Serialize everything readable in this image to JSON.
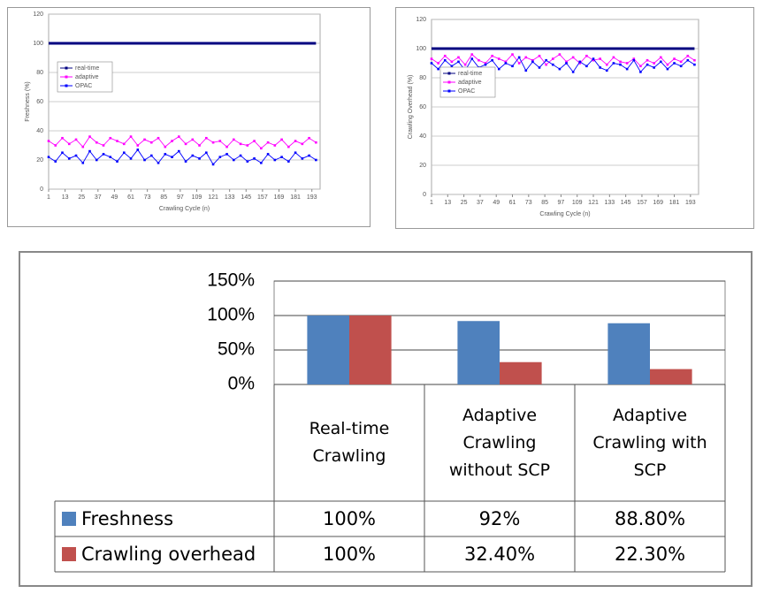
{
  "chart_data": [
    {
      "type": "line",
      "ylabel": "Freshness (%)",
      "xlabel": "Crawling Cycle (n)",
      "x": [
        1,
        6,
        11,
        16,
        21,
        26,
        31,
        36,
        41,
        46,
        51,
        56,
        61,
        66,
        71,
        76,
        81,
        86,
        91,
        96,
        101,
        106,
        111,
        116,
        121,
        126,
        131,
        136,
        141,
        146,
        151,
        156,
        161,
        166,
        171,
        176,
        181,
        186,
        191,
        196
      ],
      "xlim": [
        1,
        199
      ],
      "xticks": [
        1,
        13,
        25,
        37,
        49,
        61,
        73,
        85,
        97,
        109,
        121,
        133,
        145,
        157,
        169,
        181,
        193
      ],
      "ylim": [
        0,
        120
      ],
      "yticks": [
        0,
        20,
        40,
        60,
        80,
        100,
        120
      ],
      "grid": true,
      "legend": "center left",
      "series": [
        {
          "name": "real-time",
          "color": "#000080",
          "values": [
            100,
            100,
            100,
            100,
            100,
            100,
            100,
            100,
            100,
            100,
            100,
            100,
            100,
            100,
            100,
            100,
            100,
            100,
            100,
            100,
            100,
            100,
            100,
            100,
            100,
            100,
            100,
            100,
            100,
            100,
            100,
            100,
            100,
            100,
            100,
            100,
            100,
            100,
            100,
            100
          ]
        },
        {
          "name": "adaptive",
          "color": "#ff00ff",
          "values": [
            33,
            30,
            35,
            31,
            34,
            29,
            36,
            32,
            30,
            35,
            33,
            31,
            36,
            30,
            34,
            32,
            35,
            29,
            33,
            36,
            31,
            34,
            30,
            35,
            32,
            33,
            29,
            34,
            31,
            30,
            33,
            28,
            32,
            30,
            34,
            29,
            33,
            31,
            35,
            32
          ]
        },
        {
          "name": "OPAC",
          "color": "#0000ff",
          "values": [
            22,
            19,
            25,
            21,
            23,
            18,
            26,
            20,
            24,
            22,
            19,
            25,
            21,
            27,
            20,
            23,
            18,
            24,
            22,
            26,
            19,
            23,
            21,
            25,
            17,
            22,
            24,
            20,
            23,
            19,
            21,
            18,
            24,
            20,
            22,
            19,
            25,
            21,
            23,
            20
          ]
        }
      ]
    },
    {
      "type": "line",
      "ylabel": "Crawling Overhead (%)",
      "xlabel": "Crawling Cycle (n)",
      "x": [
        1,
        6,
        11,
        16,
        21,
        26,
        31,
        36,
        41,
        46,
        51,
        56,
        61,
        66,
        71,
        76,
        81,
        86,
        91,
        96,
        101,
        106,
        111,
        116,
        121,
        126,
        131,
        136,
        141,
        146,
        151,
        156,
        161,
        166,
        171,
        176,
        181,
        186,
        191,
        196
      ],
      "xlim": [
        1,
        199
      ],
      "xticks": [
        1,
        13,
        25,
        37,
        49,
        61,
        73,
        85,
        97,
        109,
        121,
        133,
        145,
        157,
        169,
        181,
        193
      ],
      "ylim": [
        0,
        120
      ],
      "yticks": [
        0,
        20,
        40,
        60,
        80,
        100,
        120
      ],
      "grid": true,
      "legend": "center left",
      "series": [
        {
          "name": "real-time",
          "color": "#000080",
          "values": [
            100,
            100,
            100,
            100,
            100,
            100,
            100,
            100,
            100,
            100,
            100,
            100,
            100,
            100,
            100,
            100,
            100,
            100,
            100,
            100,
            100,
            100,
            100,
            100,
            100,
            100,
            100,
            100,
            100,
            100,
            100,
            100,
            100,
            100,
            100,
            100,
            100,
            100,
            100,
            100
          ]
        },
        {
          "name": "adaptive",
          "color": "#ff00ff",
          "values": [
            93,
            90,
            95,
            91,
            94,
            89,
            96,
            92,
            90,
            95,
            93,
            91,
            96,
            90,
            94,
            92,
            95,
            89,
            93,
            96,
            91,
            94,
            90,
            95,
            92,
            93,
            89,
            94,
            91,
            90,
            93,
            88,
            92,
            90,
            94,
            89,
            93,
            91,
            95,
            92
          ]
        },
        {
          "name": "OPAC",
          "color": "#0000ff",
          "values": [
            90,
            86,
            92,
            88,
            91,
            85,
            93,
            87,
            89,
            92,
            86,
            90,
            88,
            94,
            85,
            91,
            87,
            92,
            89,
            86,
            90,
            84,
            91,
            88,
            93,
            87,
            85,
            90,
            89,
            86,
            92,
            84,
            89,
            87,
            91,
            86,
            90,
            88,
            92,
            89
          ]
        }
      ]
    },
    {
      "type": "bar",
      "categories": [
        "Real-time Crawling",
        "Adaptive Crawling without SCP",
        "Adaptive Crawling with SCP"
      ],
      "ylim": [
        0,
        150
      ],
      "yticks": [
        {
          "value": 0,
          "label": "0%"
        },
        {
          "value": 50,
          "label": "50%"
        },
        {
          "value": 100,
          "label": "100%"
        },
        {
          "value": 150,
          "label": "150%"
        }
      ],
      "grid": true,
      "data_table": true,
      "series": [
        {
          "name": "Freshness",
          "color": "#4f81bd",
          "values": [
            100,
            92,
            88.8
          ],
          "value_labels": [
            "100%",
            "92%",
            "88.80%"
          ]
        },
        {
          "name": "Crawling overhead",
          "color": "#c0504d",
          "values": [
            100,
            32.4,
            22.3
          ],
          "value_labels": [
            "100%",
            "32.40%",
            "22.30%"
          ]
        }
      ]
    }
  ]
}
